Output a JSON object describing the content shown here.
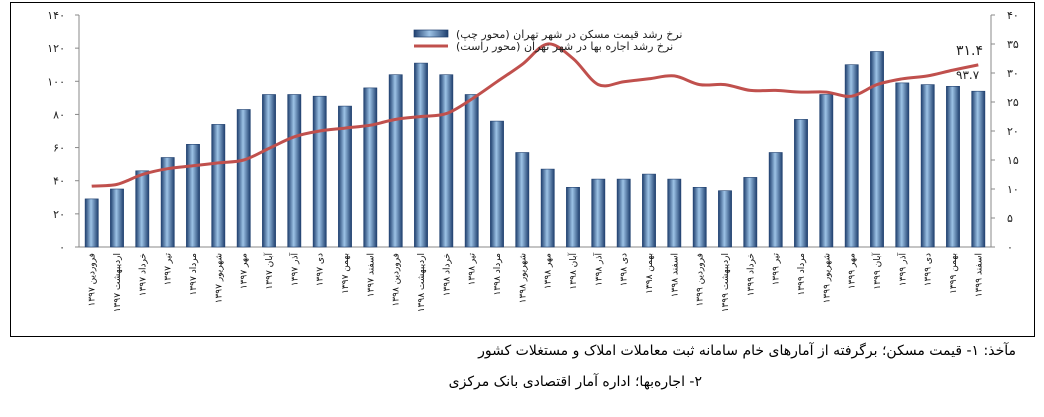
{
  "chart_data": {
    "type": "bar+line",
    "categories": [
      "فروردین ۱۳۹۷",
      "اردیبهشت ۱۳۹۷",
      "خرداد ۱۳۹۷",
      "تیر ۱۳۹۷",
      "مرداد ۱۳۹۷",
      "شهریور ۱۳۹۷",
      "مهر ۱۳۹۷",
      "آبان ۱۳۹۷",
      "آذر ۱۳۹۷",
      "دی ۱۳۹۷",
      "بهمن ۱۳۹۷",
      "اسفند ۱۳۹۷",
      "فروردین ۱۳۹۸",
      "اردیبهشت ۱۳۹۸",
      "خرداد ۱۳۹۸",
      "تیر ۱۳۹۸",
      "مرداد ۱۳۹۸",
      "شهریور ۱۳۹۸",
      "مهر ۱۳۹۸",
      "آبان ۱۳۹۸",
      "آذر ۱۳۹۸",
      "دی ۱۳۹۸",
      "بهمن ۱۳۹۸",
      "اسفند ۱۳۹۸",
      "فروردین ۱۳۹۹",
      "اردیبهشت ۱۳۹۹",
      "خرداد ۱۳۹۹",
      "تیر ۱۳۹۹",
      "مرداد ۱۳۹۹",
      "شهریور ۱۳۹۹",
      "مهر ۱۳۹۹",
      "آبان ۱۳۹۹",
      "آذر ۱۳۹۹",
      "دی ۱۳۹۹",
      "بهمن ۱۳۹۹",
      "اسفند ۱۳۹۹"
    ],
    "series": [
      {
        "name": "نرخ رشد قیمت مسکن در شهر تهران (محور چپ)",
        "kind": "bar",
        "axis": "left",
        "color": "#4f81bd",
        "values": [
          29,
          35,
          46,
          54,
          62,
          74,
          83,
          92,
          92,
          91,
          85,
          96,
          104,
          111,
          104,
          92,
          76,
          57,
          47,
          36,
          41,
          41,
          44,
          41,
          36,
          34,
          42,
          57,
          77,
          92,
          110,
          118,
          99,
          98,
          97,
          94
        ]
      },
      {
        "name": "نرخ رشد اجاره بها در شهر تهران (محور راست)",
        "kind": "line",
        "axis": "right",
        "color": "#c0504d",
        "values": [
          10.5,
          10.8,
          12.5,
          13.5,
          14,
          14.5,
          15,
          17,
          19,
          20,
          20.5,
          21,
          22,
          22.5,
          23,
          25.5,
          28.5,
          31.5,
          35,
          32.5,
          28,
          28.5,
          29,
          29.5,
          28,
          28,
          27,
          27,
          26.7,
          26.7,
          26,
          28,
          29,
          29.5,
          30.5,
          31.4
        ]
      }
    ],
    "left_axis": {
      "min": 0,
      "max": 140,
      "ticks": [
        "۰",
        "۲۰",
        "۴۰",
        "۶۰",
        "۸۰",
        "۱۰۰",
        "۱۲۰",
        "۱۴۰"
      ]
    },
    "right_axis": {
      "min": 0,
      "max": 40,
      "ticks": [
        "۰",
        "۵",
        "۱۰",
        "۱۵",
        "۲۰",
        "۲۵",
        "۳۰",
        "۳۵",
        "۴۰"
      ]
    },
    "annotations": [
      "۳۱.۴",
      "۹۳.۷"
    ],
    "legend": "top-center"
  },
  "notes": {
    "line1": "مآخذ: ۱- قیمت مسکن؛ برگرفته از آمارهای خام سامانه ثبت معاملات املاک و مستغلات کشور",
    "line2": "۲- اجاره‌بها؛ اداره آمار اقتصادی بانک مرکزی"
  }
}
